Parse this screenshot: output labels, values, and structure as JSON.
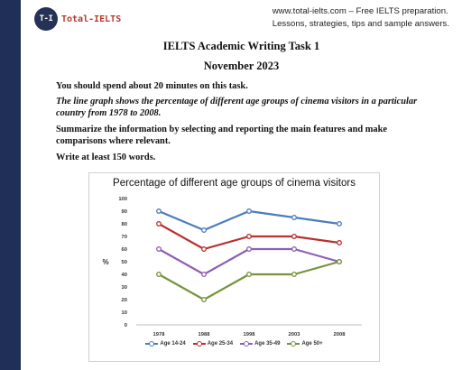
{
  "header": {
    "logo_badge": "T-I",
    "logo_text": "Total-IELTS",
    "site_line1": "www.total-ielts.com – Free IELTS preparation.",
    "site_line2": "Lessons, strategies, tips and sample answers."
  },
  "task": {
    "title": "IELTS Academic Writing Task 1",
    "date": "November 2023",
    "time_note": "You should spend about 20 minutes on this task.",
    "prompt": "The line graph shows the percentage of different age groups of cinema visitors in a particular country from 1978 to 2008.",
    "instruction": "Summarize the information by selecting and reporting the main features and make comparisons where relevant.",
    "word_count": "Write at least 150 words."
  },
  "colors": {
    "sidebar": "#1f2f57",
    "age_14_24": "#4a7ebb",
    "age_25_34": "#b8312f",
    "age_35_49": "#8e5fb5",
    "age_50_plus": "#77933c"
  },
  "chart_data": {
    "type": "line",
    "title": "Percentage of different age groups of cinema visitors",
    "xlabel": "",
    "ylabel": "%",
    "categories": [
      "1978",
      "1988",
      "1998",
      "2003",
      "2008"
    ],
    "ylim": [
      0,
      100
    ],
    "yticks": [
      0,
      10,
      20,
      30,
      40,
      50,
      60,
      70,
      80,
      90,
      100
    ],
    "grid": false,
    "legend_position": "bottom",
    "series": [
      {
        "name": "Age 14-24",
        "values": [
          90,
          75,
          90,
          85,
          80
        ],
        "color": "#4a7ebb"
      },
      {
        "name": "Age 25-34",
        "values": [
          80,
          60,
          70,
          70,
          65
        ],
        "color": "#b8312f"
      },
      {
        "name": "Age 35-49",
        "values": [
          60,
          40,
          60,
          60,
          50
        ],
        "color": "#8e5fb5"
      },
      {
        "name": "Age 50+",
        "values": [
          40,
          20,
          40,
          40,
          50
        ],
        "color": "#77933c"
      }
    ]
  }
}
